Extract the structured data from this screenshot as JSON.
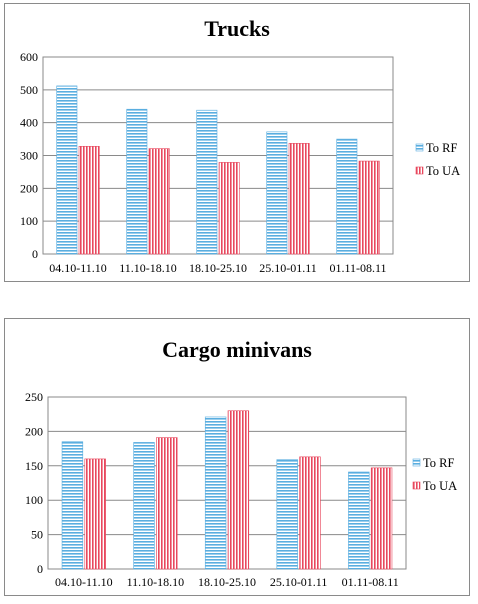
{
  "charts": {
    "trucks": {
      "type": "bar",
      "title": "Trucks",
      "categories": [
        "04.10-11.10",
        "11.10-18.10",
        "18.10-25.10",
        "25.10-01.11",
        "01.11-08.11"
      ],
      "series": [
        {
          "name": "To RF",
          "values": [
            512,
            441,
            438,
            372,
            350
          ],
          "color": "#5aaee0",
          "stripe": "horizontal"
        },
        {
          "name": "To UA",
          "values": [
            328,
            321,
            279,
            337,
            283
          ],
          "color": "#e8485e",
          "stripe": "vertical"
        }
      ],
      "ylim": [
        0,
        600
      ],
      "yticks": [
        "0",
        "100",
        "200",
        "300",
        "400",
        "500",
        "600"
      ],
      "ytick_values": [
        0,
        100,
        200,
        300,
        400,
        500,
        600
      ],
      "grid": true,
      "legend": "right"
    },
    "cargo_minivans": {
      "type": "bar",
      "title": "Cargo minivans",
      "categories": [
        "04.10-11.10",
        "11.10-18.10",
        "18.10-25.10",
        "25.10-01.11",
        "01.11-08.11"
      ],
      "series": [
        {
          "name": "To RF",
          "values": [
            185,
            184,
            221,
            159,
            141
          ],
          "color": "#5aaee0",
          "stripe": "horizontal"
        },
        {
          "name": "To UA",
          "values": [
            160,
            191,
            230,
            163,
            147
          ],
          "color": "#e8485e",
          "stripe": "vertical"
        }
      ],
      "ylim": [
        0,
        250
      ],
      "yticks": [
        "0",
        "50",
        "100",
        "150",
        "200",
        "250"
      ],
      "ytick_values": [
        0,
        50,
        100,
        150,
        200,
        250
      ],
      "grid": true,
      "legend": "right"
    }
  }
}
